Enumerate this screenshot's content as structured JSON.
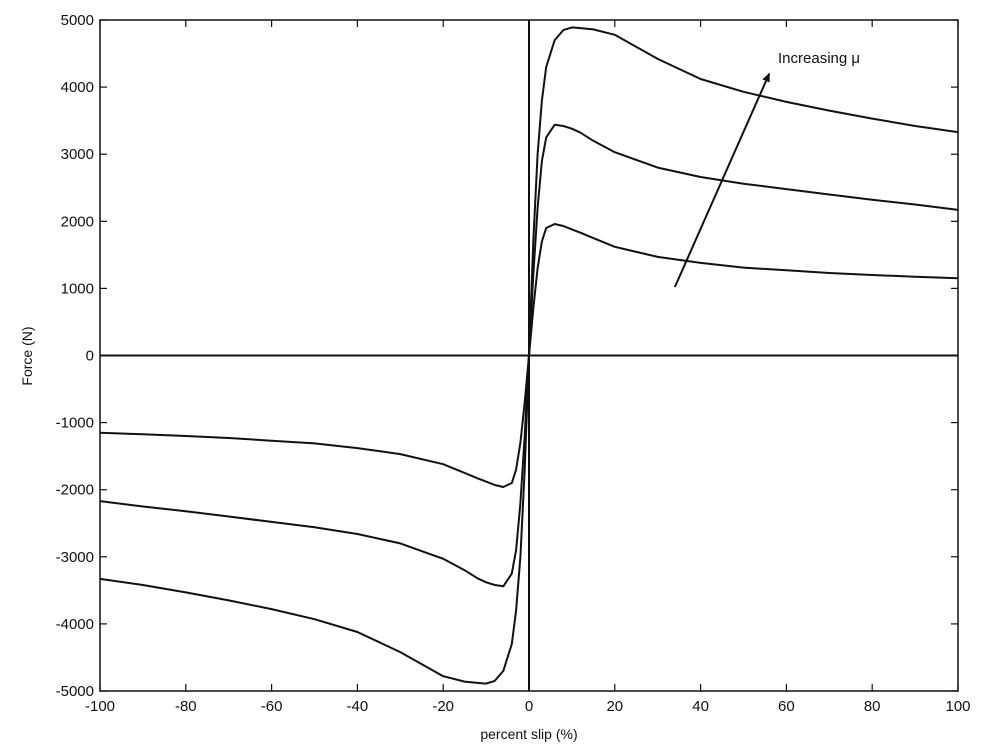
{
  "chart_data": {
    "type": "line",
    "title": "",
    "xlabel": "percent slip (%)",
    "ylabel": "Force (N)",
    "xlim": [
      -100,
      100
    ],
    "ylim": [
      -5000,
      5000
    ],
    "xticks": [
      -100,
      -80,
      -60,
      -40,
      -20,
      0,
      20,
      40,
      60,
      80,
      100
    ],
    "yticks": [
      -5000,
      -4000,
      -3000,
      -2000,
      -1000,
      0,
      1000,
      2000,
      3000,
      4000,
      5000
    ],
    "grid": false,
    "legend": "none",
    "x": [
      -100,
      -90,
      -80,
      -70,
      -60,
      -50,
      -40,
      -30,
      -20,
      -15,
      -12,
      -10,
      -8,
      -6,
      -4,
      -3,
      -2,
      -1,
      0,
      1,
      2,
      3,
      4,
      6,
      8,
      10,
      12,
      15,
      20,
      30,
      40,
      50,
      60,
      70,
      80,
      90,
      100
    ],
    "series": [
      {
        "values": [
          -1150,
          -1175,
          -1200,
          -1230,
          -1270,
          -1310,
          -1380,
          -1470,
          -1620,
          -1750,
          -1830,
          -1880,
          -1930,
          -1960,
          -1900,
          -1700,
          -1300,
          -700,
          0,
          700,
          1300,
          1700,
          1900,
          1960,
          1930,
          1880,
          1830,
          1750,
          1620,
          1470,
          1380,
          1310,
          1270,
          1230,
          1200,
          1175,
          1150
        ]
      },
      {
        "values": [
          -2170,
          -2250,
          -2320,
          -2400,
          -2480,
          -2560,
          -2660,
          -2800,
          -3030,
          -3200,
          -3320,
          -3380,
          -3420,
          -3440,
          -3250,
          -2900,
          -2200,
          -1200,
          0,
          1200,
          2200,
          2900,
          3250,
          3440,
          3420,
          3380,
          3320,
          3200,
          3030,
          2800,
          2660,
          2560,
          2480,
          2400,
          2320,
          2250,
          2170
        ]
      },
      {
        "values": [
          -3330,
          -3420,
          -3530,
          -3650,
          -3780,
          -3930,
          -4120,
          -4420,
          -4780,
          -4860,
          -4880,
          -4890,
          -4850,
          -4700,
          -4300,
          -3800,
          -3000,
          -1700,
          0,
          1700,
          3000,
          3800,
          4300,
          4700,
          4850,
          4890,
          4880,
          4860,
          4780,
          4420,
          4120,
          3930,
          3780,
          3650,
          3530,
          3420,
          3330
        ]
      }
    ],
    "annotation": {
      "text": "Increasing μ",
      "arrow_from": [
        34,
        1020
      ],
      "arrow_to": [
        56,
        4200
      ]
    }
  }
}
